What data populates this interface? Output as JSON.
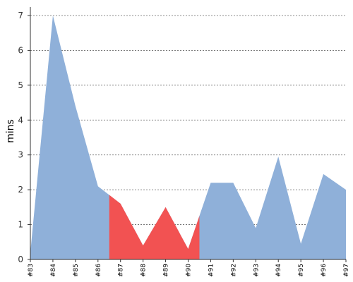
{
  "chart_data": {
    "type": "area",
    "ylabel": "mins",
    "ylim": [
      0,
      7
    ],
    "yticks": [
      0,
      1,
      2,
      3,
      4,
      5,
      6,
      7
    ],
    "grid": true,
    "categories": [
      "#83",
      "#84",
      "#85",
      "#86",
      "#87",
      "#88",
      "#89",
      "#90",
      "#91",
      "#92",
      "#93",
      "#94",
      "#95",
      "#96",
      "#97"
    ],
    "values": [
      0.2,
      7.0,
      4.4,
      2.1,
      1.6,
      0.4,
      1.5,
      0.3,
      2.2,
      2.2,
      0.9,
      2.95,
      0.45,
      2.45,
      2.0
    ],
    "highlight": {
      "from": 3.5,
      "to": 7.5
    },
    "colors": {
      "base": "#8fb0d9",
      "highlight": "#f25252",
      "grid": "#666666",
      "axis": "#333333"
    }
  }
}
